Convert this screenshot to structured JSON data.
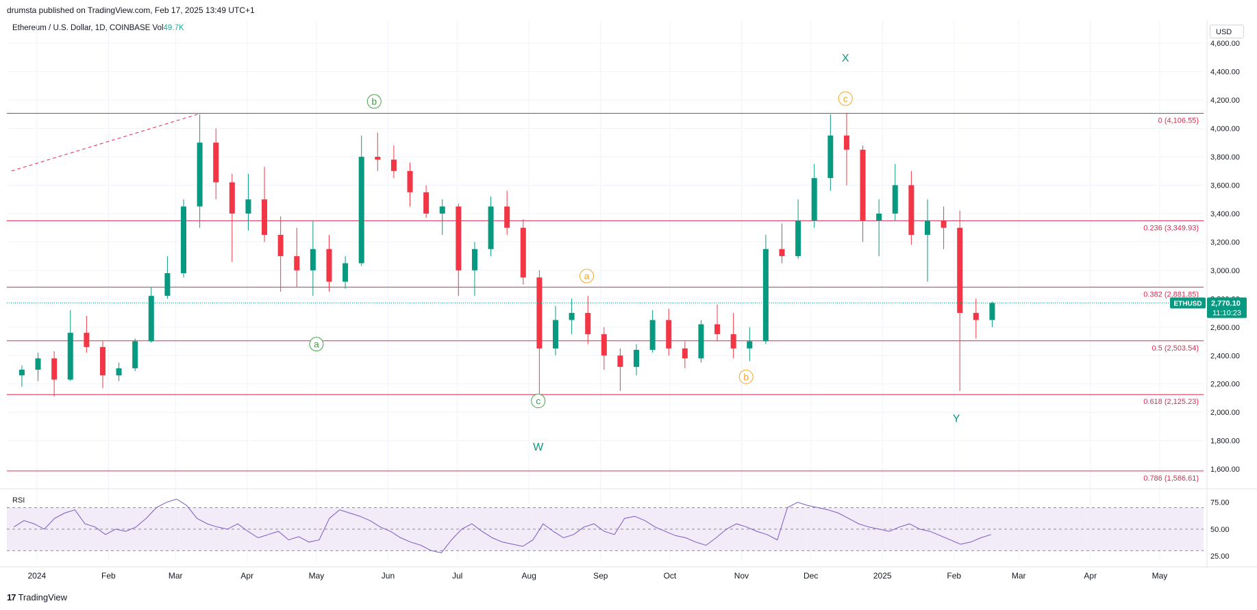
{
  "header": "drumsta published on TradingView.com, Feb 17, 2025 13:49 UTC+1",
  "symbol_prefix": "Ethereum / U.S. Dollar, 1D, COINBASE",
  "vol_label": "Vol",
  "vol_value": "49.7K",
  "currency": "USD",
  "rsi_label": "RSI",
  "footer_brand": "TradingView",
  "last_price_tag": {
    "ticker": "ETHUSD",
    "price": "2,770.10",
    "countdown": "11:10:23"
  },
  "colors": {
    "up": "#089981",
    "down": "#f23645",
    "fib": "#e0284f",
    "rsi": "#7e57c2",
    "green_label": "#43a047",
    "orange_label": "#f5a623",
    "teal_label": "#089981"
  },
  "chart_data": {
    "type": "candlestick",
    "y_range": [
      1480,
      4760
    ],
    "y_ticks": [
      "4,600.00",
      "4,400.00",
      "4,200.00",
      "4,000.00",
      "3,800.00",
      "3,600.00",
      "3,400.00",
      "3,200.00",
      "3,000.00",
      "2,800.00",
      "2,600.00",
      "2,400.00",
      "2,200.00",
      "2,000.00",
      "1,800.00",
      "1,600.00"
    ],
    "time_labels": [
      "2024",
      "Feb",
      "Mar",
      "Apr",
      "May",
      "Jun",
      "Jul",
      "Aug",
      "Sep",
      "Oct",
      "Nov",
      "Dec",
      "2025",
      "Feb",
      "Mar",
      "Apr",
      "May"
    ],
    "fib_levels": [
      {
        "label": "0 (4,106.55)",
        "value": 4106.55
      },
      {
        "label": "0.236 (3,349.93)",
        "value": 3349.93
      },
      {
        "label": "0.382 (2,881.85)",
        "value": 2881.85
      },
      {
        "label": "0.5 (2,503.54)",
        "value": 2503.54
      },
      {
        "label": "0.618 (2,125.23)",
        "value": 2125.23
      },
      {
        "label": "0.786 (1,586.61)",
        "value": 1586.61
      }
    ],
    "wave_labels": [
      {
        "text": "a",
        "style": "green",
        "date": "2024-05-01",
        "value": 2480
      },
      {
        "text": "b",
        "style": "green",
        "date": "2024-05-26",
        "value": 4190
      },
      {
        "text": "c",
        "style": "green",
        "date": "2024-08-05",
        "value": 2080
      },
      {
        "text": "W",
        "style": "teal",
        "date": "2024-08-05",
        "value": 1760
      },
      {
        "text": "a",
        "style": "orange",
        "date": "2024-08-26",
        "value": 2960
      },
      {
        "text": "b",
        "style": "orange",
        "date": "2024-11-03",
        "value": 2250
      },
      {
        "text": "c",
        "style": "orange",
        "date": "2024-12-16",
        "value": 4210
      },
      {
        "text": "X",
        "style": "teal",
        "date": "2024-12-16",
        "value": 4500
      },
      {
        "text": "Y",
        "style": "teal",
        "date": "2025-02-02",
        "value": 1960
      }
    ],
    "last_price": 2770.1,
    "trend_line": {
      "from_date": "2023-12-21",
      "from_value": 3700,
      "to_date": "2024-03-12",
      "to_value": 4106.55
    },
    "candles": [
      {
        "date": "2023-12-22",
        "o": 2260,
        "h": 2330,
        "l": 2180,
        "c": 2300
      },
      {
        "date": "2023-12-29",
        "o": 2300,
        "h": 2420,
        "l": 2220,
        "c": 2380
      },
      {
        "date": "2024-01-05",
        "o": 2380,
        "h": 2430,
        "l": 2110,
        "c": 2230
      },
      {
        "date": "2024-01-12",
        "o": 2230,
        "h": 2720,
        "l": 2220,
        "c": 2560
      },
      {
        "date": "2024-01-19",
        "o": 2560,
        "h": 2680,
        "l": 2420,
        "c": 2460
      },
      {
        "date": "2024-01-26",
        "o": 2460,
        "h": 2500,
        "l": 2170,
        "c": 2260
      },
      {
        "date": "2024-02-02",
        "o": 2260,
        "h": 2350,
        "l": 2220,
        "c": 2310
      },
      {
        "date": "2024-02-09",
        "o": 2310,
        "h": 2520,
        "l": 2290,
        "c": 2500
      },
      {
        "date": "2024-02-16",
        "o": 2500,
        "h": 2880,
        "l": 2490,
        "c": 2820
      },
      {
        "date": "2024-02-23",
        "o": 2820,
        "h": 3100,
        "l": 2800,
        "c": 2980
      },
      {
        "date": "2024-03-01",
        "o": 2980,
        "h": 3500,
        "l": 2950,
        "c": 3450
      },
      {
        "date": "2024-03-08",
        "o": 3450,
        "h": 4100,
        "l": 3300,
        "c": 3900
      },
      {
        "date": "2024-03-15",
        "o": 3900,
        "h": 4000,
        "l": 3500,
        "c": 3620
      },
      {
        "date": "2024-03-22",
        "o": 3620,
        "h": 3680,
        "l": 3060,
        "c": 3400
      },
      {
        "date": "2024-03-29",
        "o": 3400,
        "h": 3680,
        "l": 3280,
        "c": 3500
      },
      {
        "date": "2024-04-05",
        "o": 3500,
        "h": 3730,
        "l": 3200,
        "c": 3250
      },
      {
        "date": "2024-04-12",
        "o": 3250,
        "h": 3380,
        "l": 2850,
        "c": 3100
      },
      {
        "date": "2024-04-19",
        "o": 3100,
        "h": 3300,
        "l": 2880,
        "c": 3000
      },
      {
        "date": "2024-04-26",
        "o": 3000,
        "h": 3350,
        "l": 2820,
        "c": 3150
      },
      {
        "date": "2024-05-03",
        "o": 3150,
        "h": 3250,
        "l": 2850,
        "c": 2920
      },
      {
        "date": "2024-05-10",
        "o": 2920,
        "h": 3100,
        "l": 2870,
        "c": 3050
      },
      {
        "date": "2024-05-17",
        "o": 3050,
        "h": 3950,
        "l": 3030,
        "c": 3800
      },
      {
        "date": "2024-05-24",
        "o": 3800,
        "h": 3970,
        "l": 3700,
        "c": 3780
      },
      {
        "date": "2024-05-31",
        "o": 3780,
        "h": 3880,
        "l": 3650,
        "c": 3700
      },
      {
        "date": "2024-06-07",
        "o": 3700,
        "h": 3760,
        "l": 3450,
        "c": 3550
      },
      {
        "date": "2024-06-14",
        "o": 3550,
        "h": 3600,
        "l": 3370,
        "c": 3400
      },
      {
        "date": "2024-06-21",
        "o": 3400,
        "h": 3500,
        "l": 3250,
        "c": 3450
      },
      {
        "date": "2024-06-28",
        "o": 3450,
        "h": 3470,
        "l": 2820,
        "c": 3000
      },
      {
        "date": "2024-07-05",
        "o": 3000,
        "h": 3200,
        "l": 2820,
        "c": 3150
      },
      {
        "date": "2024-07-12",
        "o": 3150,
        "h": 3520,
        "l": 3100,
        "c": 3450
      },
      {
        "date": "2024-07-19",
        "o": 3450,
        "h": 3560,
        "l": 3250,
        "c": 3300
      },
      {
        "date": "2024-07-26",
        "o": 3300,
        "h": 3360,
        "l": 2900,
        "c": 2950
      },
      {
        "date": "2024-08-02",
        "o": 2950,
        "h": 3000,
        "l": 2120,
        "c": 2450
      },
      {
        "date": "2024-08-09",
        "o": 2450,
        "h": 2750,
        "l": 2400,
        "c": 2650
      },
      {
        "date": "2024-08-16",
        "o": 2650,
        "h": 2800,
        "l": 2550,
        "c": 2700
      },
      {
        "date": "2024-08-23",
        "o": 2700,
        "h": 2820,
        "l": 2480,
        "c": 2550
      },
      {
        "date": "2024-08-30",
        "o": 2550,
        "h": 2600,
        "l": 2300,
        "c": 2400
      },
      {
        "date": "2024-09-06",
        "o": 2400,
        "h": 2450,
        "l": 2150,
        "c": 2320
      },
      {
        "date": "2024-09-13",
        "o": 2320,
        "h": 2480,
        "l": 2260,
        "c": 2440
      },
      {
        "date": "2024-09-20",
        "o": 2440,
        "h": 2720,
        "l": 2420,
        "c": 2650
      },
      {
        "date": "2024-09-27",
        "o": 2650,
        "h": 2730,
        "l": 2400,
        "c": 2450
      },
      {
        "date": "2024-10-04",
        "o": 2450,
        "h": 2500,
        "l": 2310,
        "c": 2380
      },
      {
        "date": "2024-10-11",
        "o": 2380,
        "h": 2650,
        "l": 2350,
        "c": 2620
      },
      {
        "date": "2024-10-18",
        "o": 2620,
        "h": 2760,
        "l": 2500,
        "c": 2550
      },
      {
        "date": "2024-10-25",
        "o": 2550,
        "h": 2700,
        "l": 2380,
        "c": 2450
      },
      {
        "date": "2024-11-01",
        "o": 2450,
        "h": 2600,
        "l": 2360,
        "c": 2500
      },
      {
        "date": "2024-11-08",
        "o": 2500,
        "h": 3250,
        "l": 2480,
        "c": 3150
      },
      {
        "date": "2024-11-15",
        "o": 3150,
        "h": 3330,
        "l": 3050,
        "c": 3100
      },
      {
        "date": "2024-11-22",
        "o": 3100,
        "h": 3500,
        "l": 3080,
        "c": 3350
      },
      {
        "date": "2024-11-29",
        "o": 3350,
        "h": 3750,
        "l": 3300,
        "c": 3650
      },
      {
        "date": "2024-12-06",
        "o": 3650,
        "h": 4100,
        "l": 3560,
        "c": 3950
      },
      {
        "date": "2024-12-13",
        "o": 3950,
        "h": 4110,
        "l": 3600,
        "c": 3850
      },
      {
        "date": "2024-12-20",
        "o": 3850,
        "h": 3880,
        "l": 3200,
        "c": 3350
      },
      {
        "date": "2024-12-27",
        "o": 3350,
        "h": 3500,
        "l": 3100,
        "c": 3400
      },
      {
        "date": "2025-01-03",
        "o": 3400,
        "h": 3750,
        "l": 3350,
        "c": 3600
      },
      {
        "date": "2025-01-10",
        "o": 3600,
        "h": 3700,
        "l": 3180,
        "c": 3250
      },
      {
        "date": "2025-01-17",
        "o": 3250,
        "h": 3500,
        "l": 2920,
        "c": 3350
      },
      {
        "date": "2025-01-24",
        "o": 3350,
        "h": 3450,
        "l": 3150,
        "c": 3300
      },
      {
        "date": "2025-01-31",
        "o": 3300,
        "h": 3420,
        "l": 2150,
        "c": 2700
      },
      {
        "date": "2025-02-07",
        "o": 2700,
        "h": 2800,
        "l": 2520,
        "c": 2650
      },
      {
        "date": "2025-02-14",
        "o": 2650,
        "h": 2780,
        "l": 2600,
        "c": 2770
      }
    ],
    "rsi": {
      "ticks": [
        "75.00",
        "50.00",
        "25.00"
      ],
      "bands": [
        70,
        50,
        30
      ],
      "range": [
        20,
        85
      ],
      "values": [
        52,
        58,
        55,
        50,
        60,
        65,
        68,
        55,
        52,
        45,
        50,
        48,
        52,
        60,
        70,
        75,
        78,
        72,
        60,
        55,
        52,
        50,
        55,
        48,
        42,
        45,
        48,
        40,
        43,
        38,
        40,
        60,
        68,
        65,
        62,
        58,
        52,
        48,
        42,
        38,
        35,
        30,
        28,
        40,
        50,
        55,
        48,
        42,
        38,
        36,
        34,
        40,
        55,
        48,
        42,
        45,
        52,
        55,
        48,
        45,
        60,
        62,
        58,
        52,
        48,
        44,
        42,
        38,
        35,
        42,
        50,
        55,
        52,
        48,
        45,
        40,
        70,
        75,
        72,
        70,
        68,
        65,
        60,
        55,
        52,
        50,
        48,
        52,
        55,
        50,
        48,
        44,
        40,
        36,
        38,
        42,
        45
      ]
    }
  }
}
